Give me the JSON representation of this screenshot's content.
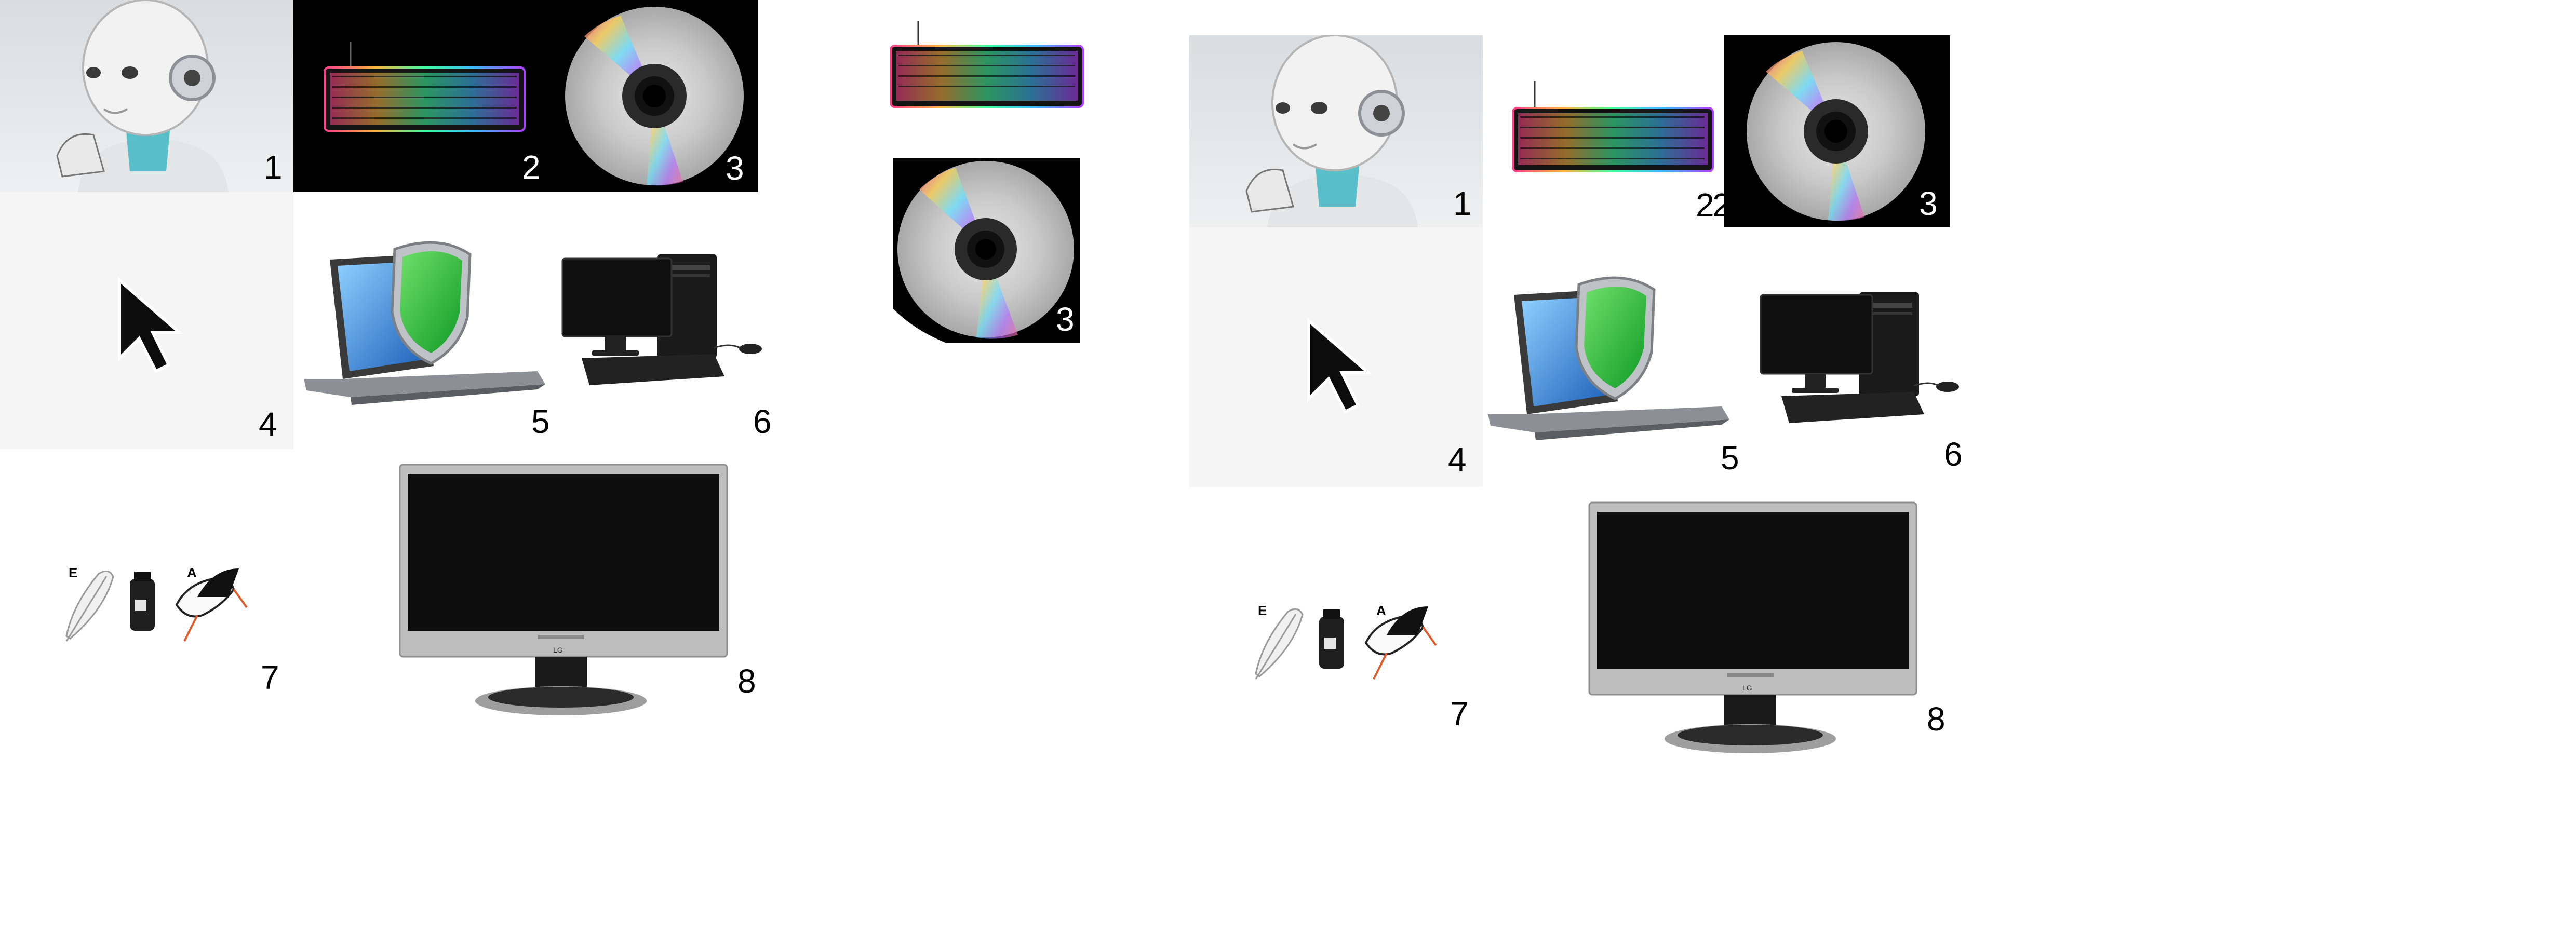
{
  "left_grid": {
    "tiles": [
      {
        "label": "1",
        "icon": "robot-icon"
      },
      {
        "label": "2",
        "icon": "keyboard-icon"
      },
      {
        "label": "3",
        "icon": "disc-icon"
      },
      {
        "label": "4",
        "icon": "cursor-icon"
      },
      {
        "label": "5",
        "icon": "laptop-shield-icon"
      },
      {
        "label": "6",
        "icon": "desktop-computer-icon"
      },
      {
        "label": "7",
        "icon": "feather-ink-stork-icon",
        "letters": [
          "E",
          "A"
        ]
      },
      {
        "label": "8",
        "icon": "monitor-icon",
        "brand": "LG"
      }
    ]
  },
  "middle_column": {
    "tiles": [
      {
        "icon": "keyboard-icon"
      },
      {
        "label": "3",
        "icon": "disc-icon"
      }
    ]
  },
  "right_grid": {
    "tiles": [
      {
        "label": "1",
        "icon": "robot-icon"
      },
      {
        "label": "2",
        "extra_glyph": "2",
        "icon": "keyboard-icon"
      },
      {
        "label": "3",
        "icon": "disc-icon"
      },
      {
        "label": "4",
        "icon": "cursor-icon"
      },
      {
        "label": "5",
        "icon": "laptop-shield-icon"
      },
      {
        "label": "6",
        "icon": "desktop-computer-icon"
      },
      {
        "label": "7",
        "icon": "feather-ink-stork-icon",
        "letters": [
          "E",
          "A"
        ]
      },
      {
        "label": "8",
        "icon": "monitor-icon",
        "brand": "LG"
      }
    ]
  },
  "colors": {
    "background": "#ffffff",
    "dark_tile": "#000000",
    "light_tile": "#f5f5f5",
    "shield_green": "#22b23a",
    "screen_blue": "#2a7fd4"
  }
}
